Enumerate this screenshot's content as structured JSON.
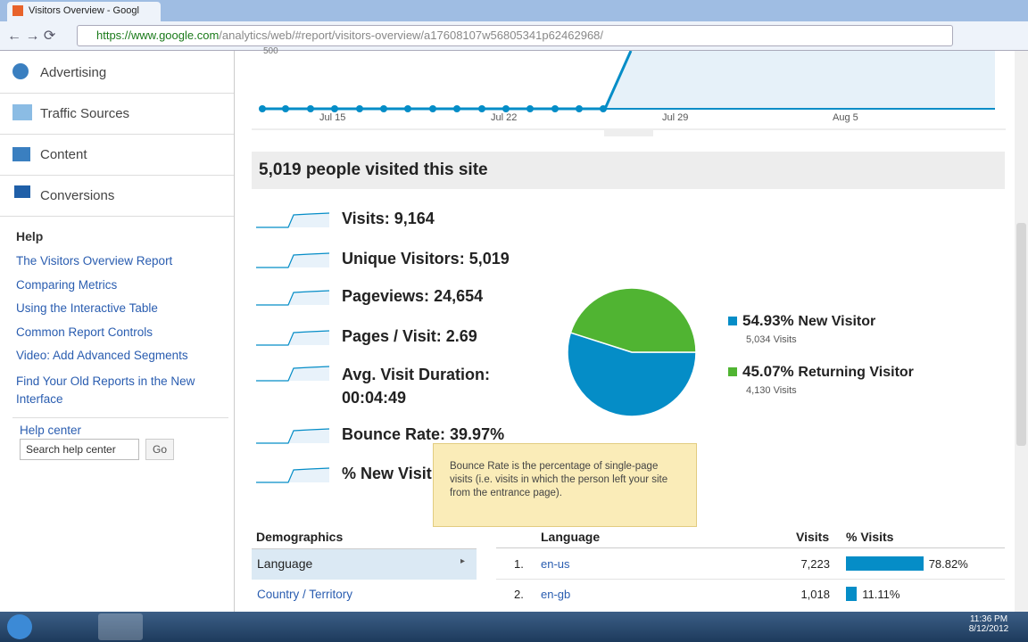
{
  "browser": {
    "tab_title": "Visitors Overview - Googl",
    "url_host": "https://www.google.com",
    "url_path": "/analytics/web/#report/visitors-overview/a17608107w56805341p62462968/"
  },
  "sidebar": {
    "nav": [
      "Advertising",
      "Traffic Sources",
      "Content",
      "Conversions"
    ],
    "help_title": "Help",
    "help_links": [
      "The Visitors Overview Report",
      "Comparing Metrics",
      "Using the Interactive Table",
      "Common Report Controls",
      "Video: Add Advanced Segments",
      "Find Your Old Reports in the New Interface"
    ],
    "help_center": "Help center",
    "search_placeholder": "Search help center",
    "go": "Go"
  },
  "timeline": {
    "y_label": "500",
    "x_labels": [
      "Jul 15",
      "Jul 22",
      "Jul 29",
      "Aug 5"
    ]
  },
  "summary_title": "5,019 people visited this site",
  "metrics": [
    {
      "label": "Visits:",
      "value": "9,164"
    },
    {
      "label": "Unique Visitors:",
      "value": "5,019"
    },
    {
      "label": "Pageviews:",
      "value": "24,654"
    },
    {
      "label": "Pages / Visit:",
      "value": "2.69"
    },
    {
      "label": "Avg. Visit Duration:",
      "value": "00:04:49"
    },
    {
      "label": "Bounce Rate:",
      "value": "39.97%"
    },
    {
      "label": "% New Visit",
      "value": null
    }
  ],
  "tooltip": "Bounce Rate is the percentage of single-page visits (i.e. visits in which the person left your site from the entrance page).",
  "pie": {
    "slices": [
      {
        "value": 54.93,
        "label": "54.93%",
        "name": "New Visitor",
        "visits": "5,034 Visits",
        "color": "#058dc7"
      },
      {
        "value": 45.07,
        "label": "45.07%",
        "name": "Returning Visitor",
        "visits": "4,130 Visits",
        "color": "#50b432"
      }
    ]
  },
  "demographics": {
    "title": "Demographics",
    "items": [
      "Language",
      "Country / Territory"
    ]
  },
  "language_table": {
    "headers": [
      "Language",
      "Visits",
      "% Visits"
    ],
    "rows": [
      {
        "rank": "1.",
        "language": "en-us",
        "visits": "7,223",
        "pct": 78.82,
        "pct_label": "78.82%"
      },
      {
        "rank": "2.",
        "language": "en-gb",
        "visits": "1,018",
        "pct": 11.11,
        "pct_label": "11.11%"
      }
    ]
  },
  "taskbar": {
    "time": "11:36 PM",
    "date": "8/12/2012"
  }
}
